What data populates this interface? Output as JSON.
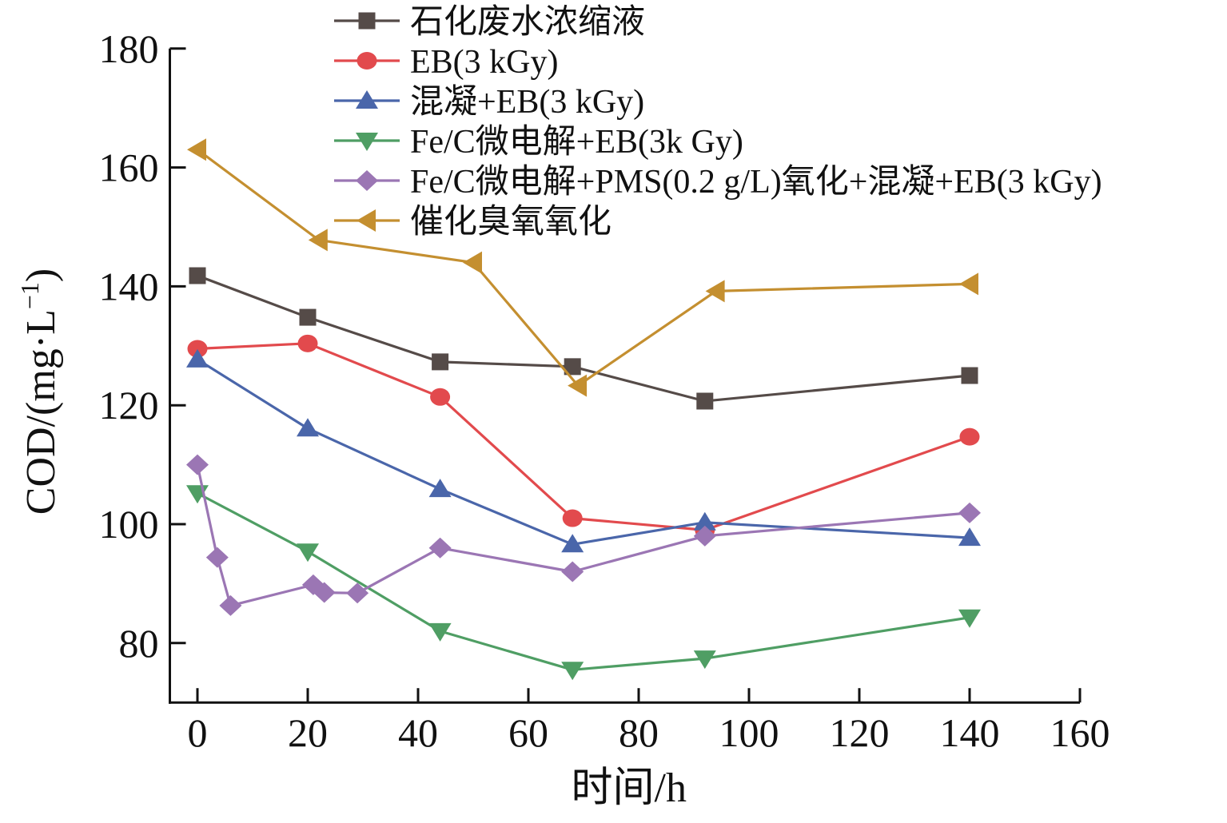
{
  "chart_data": {
    "type": "line",
    "title": "",
    "xlabel": "时间/h",
    "ylabel": "COD/(mg·L⁻¹)",
    "ylabel_parts": {
      "main": "COD/(mg·L",
      "sup": "−1",
      "close": ")"
    },
    "xlim": [
      -5,
      160
    ],
    "ylim": [
      70,
      180
    ],
    "xticks": [
      0,
      20,
      40,
      60,
      80,
      100,
      120,
      140,
      160
    ],
    "yticks": [
      80,
      100,
      120,
      140,
      160,
      180
    ],
    "grid": false,
    "legend_position": "top-right",
    "series": [
      {
        "name": "石化废水浓缩液",
        "color": "#554b48",
        "marker": "square",
        "x": [
          0,
          20,
          44,
          68,
          92,
          140
        ],
        "y": [
          141.8,
          134.8,
          127.3,
          126.5,
          120.7,
          125.0
        ]
      },
      {
        "name": "EB(3 kGy)",
        "color": "#e24a4d",
        "marker": "circle",
        "x": [
          0,
          20,
          44,
          68,
          92,
          140
        ],
        "y": [
          129.5,
          130.4,
          121.4,
          101.0,
          99.0,
          114.7
        ]
      },
      {
        "name": "混凝+EB(3 kGy)",
        "color": "#4a66aa",
        "marker": "triangle-up",
        "x": [
          0,
          20,
          44,
          68,
          92,
          140
        ],
        "y": [
          127.7,
          116.1,
          105.9,
          96.6,
          100.3,
          97.7
        ]
      },
      {
        "name": "Fe/C微电解+EB(3k Gy)",
        "color": "#4f9e64",
        "marker": "triangle-down",
        "x": [
          0,
          20,
          44,
          68,
          92,
          140
        ],
        "y": [
          105.2,
          95.4,
          82.0,
          75.5,
          77.4,
          84.3
        ]
      },
      {
        "name": "Fe/C微电解+PMS(0.2 g/L)氧化+混凝+EB(3 kGy)",
        "color": "#9b76b4",
        "marker": "diamond",
        "x": [
          0,
          3.6,
          6,
          21,
          23,
          29,
          44,
          68,
          92,
          140
        ],
        "y": [
          110.0,
          94.4,
          86.3,
          89.8,
          88.5,
          88.4,
          96.0,
          92.0,
          98.0,
          101.9
        ]
      },
      {
        "name": "催化臭氧氧化",
        "color": "#c48f30",
        "marker": "triangle-left",
        "x": [
          0,
          22,
          50,
          69,
          94,
          140
        ],
        "y": [
          163.0,
          147.8,
          144.0,
          123.3,
          139.2,
          140.4
        ]
      }
    ]
  }
}
